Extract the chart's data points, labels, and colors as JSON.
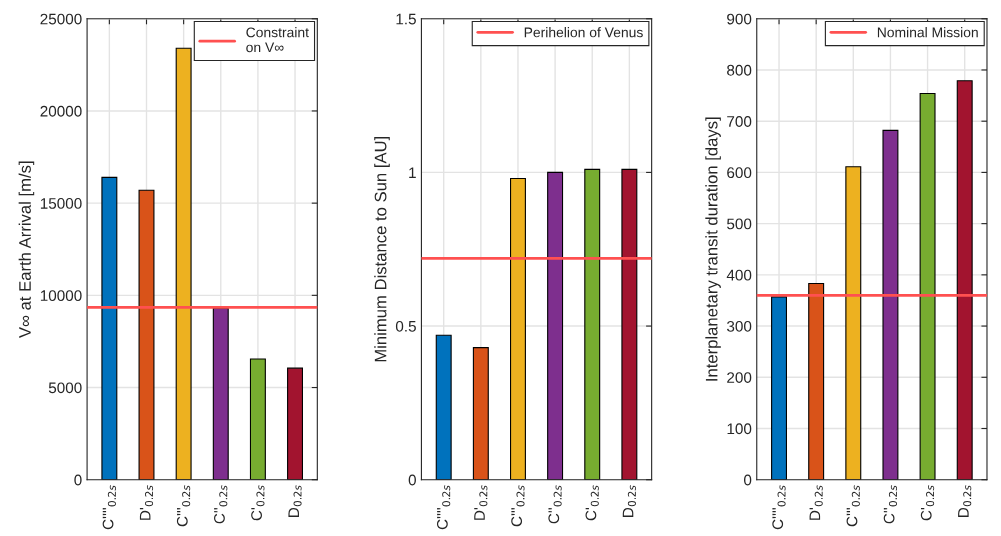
{
  "chart_data": [
    {
      "type": "bar",
      "categories": [
        "C''''$_{0.2s}$",
        "D'$_{0.2s}$",
        "C'''$_{0.2s}$",
        "C''$_{0.2s}$",
        "C'$_{0.2s}$",
        "D$_{0.2s}$"
      ],
      "values": [
        16400,
        15700,
        23400,
        9300,
        6550,
        6050
      ],
      "colors": [
        "#0072bd",
        "#d95319",
        "#edb120",
        "#7e2f8e",
        "#77ac30",
        "#a2142f"
      ],
      "ylabel": "V∞ at Earth Arrival [m/s]",
      "ylim": [
        0,
        25000
      ],
      "yticks": [
        0,
        5000,
        10000,
        15000,
        20000,
        25000
      ],
      "ref_lines": [
        {
          "axis": "y",
          "value": 9350,
          "label": "Constraint\non V∞",
          "color": "#ff5050"
        }
      ],
      "legend": "top right",
      "grid": true
    },
    {
      "type": "bar",
      "categories": [
        "C''''$_{0.2s}$",
        "D'$_{0.2s}$",
        "C'''$_{0.2s}$",
        "C''$_{0.2s}$",
        "C'$_{0.2s}$",
        "D$_{0.2s}$"
      ],
      "values": [
        0.47,
        0.43,
        0.98,
        1.0,
        1.01,
        1.01
      ],
      "colors": [
        "#0072bd",
        "#d95319",
        "#edb120",
        "#7e2f8e",
        "#77ac30",
        "#a2142f"
      ],
      "ylabel": "Minimum Distance to Sun [AU]",
      "ylim": [
        0,
        1.5
      ],
      "yticks": [
        0,
        0.5,
        1,
        1.5
      ],
      "ref_lines": [
        {
          "axis": "y",
          "value": 0.72,
          "label": "Perihelion of Venus",
          "color": "#ff5050"
        }
      ],
      "legend": "top right",
      "grid": true
    },
    {
      "type": "bar",
      "categories": [
        "C''''$_{0.2s}$",
        "D'$_{0.2s}$",
        "C'''$_{0.2s}$",
        "C''$_{0.2s}$",
        "C'$_{0.2s}$",
        "D$_{0.2s}$"
      ],
      "values": [
        357,
        383,
        611,
        682,
        754,
        779
      ],
      "colors": [
        "#0072bd",
        "#d95319",
        "#edb120",
        "#7e2f8e",
        "#77ac30",
        "#a2142f"
      ],
      "ylabel": "Interplanetary transit duration [days]",
      "ylim": [
        0,
        900
      ],
      "yticks": [
        0,
        100,
        200,
        300,
        400,
        500,
        600,
        700,
        800,
        900
      ],
      "ref_lines": [
        {
          "axis": "y",
          "value": 360,
          "label": "Nominal Mission",
          "color": "#ff5050"
        }
      ],
      "legend": "top right",
      "grid": true
    }
  ]
}
